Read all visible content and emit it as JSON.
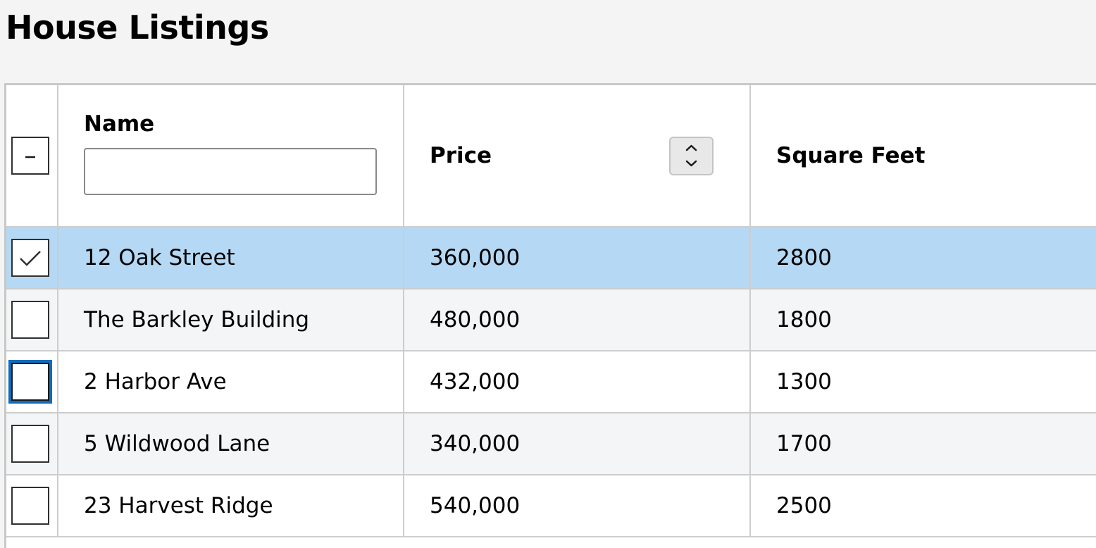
{
  "page": {
    "title": "House Listings"
  },
  "table": {
    "select_all_state": "indeterminate",
    "columns": [
      {
        "key": "name",
        "label": "Name"
      },
      {
        "key": "price",
        "label": "Price"
      },
      {
        "key": "square_feet",
        "label": "Square Feet"
      }
    ],
    "name_filter": {
      "value": "",
      "placeholder": ""
    },
    "rows": [
      {
        "name": "12 Oak Street",
        "price": "360,000",
        "square_feet": "2800",
        "selected": true
      },
      {
        "name": "The Barkley Building",
        "price": "480,000",
        "square_feet": "1800",
        "selected": false
      },
      {
        "name": "2 Harbor Ave",
        "price": "432,000",
        "square_feet": "1300",
        "selected": false,
        "focused": true
      },
      {
        "name": "5 Wildwood Lane",
        "price": "340,000",
        "square_feet": "1700",
        "selected": false
      },
      {
        "name": "23 Harvest Ridge",
        "price": "540,000",
        "square_feet": "2500",
        "selected": false
      }
    ]
  },
  "icons": {
    "select_all": "minus-icon",
    "row_selected": "checkmark-icon",
    "sort": "sort-up-down-icon"
  },
  "colors": {
    "selected_row": "#b5d9f4",
    "focus_ring": "#0f6cbd",
    "alt_row": "#f4f5f7",
    "grid_line": "#cdcdcd"
  }
}
